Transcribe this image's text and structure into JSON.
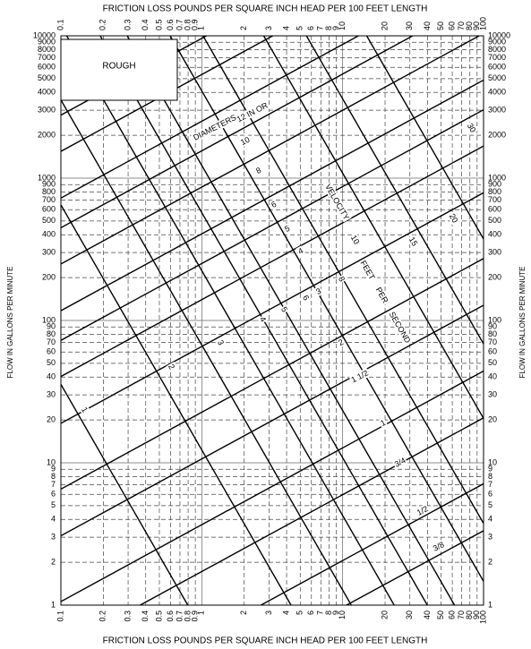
{
  "chart_data": {
    "type": "line",
    "title": "FRICTION LOSS POUNDS PER SQUARE INCH HEAD PER 100 FEET LENGTH",
    "xlabel": "FRICTION LOSS POUNDS PER SQUARE INCH HEAD PER 100 FEET LENGTH",
    "ylabel": "FLOW IN GALLONS PER MINUTE",
    "xscale": "log",
    "yscale": "log",
    "grid": true,
    "color": "#000000",
    "xlim": [
      0.1,
      100
    ],
    "ylim": [
      1,
      10000
    ],
    "xticks": [
      0.1,
      0.2,
      0.3,
      0.4,
      0.5,
      0.6,
      0.7,
      0.8,
      0.9,
      1,
      2,
      3,
      4,
      5,
      6,
      7,
      8,
      9,
      10,
      20,
      30,
      40,
      50,
      60,
      70,
      80,
      90,
      100
    ],
    "yticks": [
      1,
      2,
      3,
      4,
      5,
      6,
      7,
      8,
      9,
      10,
      20,
      30,
      40,
      50,
      60,
      70,
      80,
      90,
      100,
      200,
      300,
      400,
      500,
      600,
      700,
      800,
      900,
      1000,
      2000,
      3000,
      4000,
      5000,
      6000,
      7000,
      8000,
      9000,
      10000
    ],
    "box_label": "ROUGH",
    "annotations": [
      "DIAMETERS",
      "VELOCITY",
      "FEET",
      "PER",
      "SECOND"
    ],
    "series": [
      {
        "name": "3/8",
        "x": [
          10.66,
          100
        ],
        "values": [
          1,
          3.33
        ]
      },
      {
        "name": "1/2",
        "x": [
          2.63,
          100
        ],
        "values": [
          1,
          7.13
        ]
      },
      {
        "name": "3/4",
        "x": [
          0.365,
          100
        ],
        "values": [
          1,
          20.7
        ]
      },
      {
        "name": "1",
        "x": [
          0.1,
          100
        ],
        "values": [
          1.06,
          44.1
        ]
      },
      {
        "name": "1 1/2",
        "x": [
          0.1,
          100
        ],
        "values": [
          3.07,
          127.9
        ]
      },
      {
        "name": "2",
        "x": [
          0.1,
          100
        ],
        "values": [
          6.53,
          272.3
        ]
      },
      {
        "name": "3",
        "x": [
          0.1,
          100
        ],
        "values": [
          18.95,
          790
        ]
      },
      {
        "name": "4",
        "x": [
          0.1,
          100
        ],
        "values": [
          40.4,
          1682
        ]
      },
      {
        "name": "5",
        "x": [
          0.1,
          100
        ],
        "values": [
          72.5,
          3024
        ]
      },
      {
        "name": "6",
        "x": [
          0.1,
          100
        ],
        "values": [
          117.1,
          4882
        ]
      },
      {
        "name": "8",
        "x": [
          0.1,
          93.1
        ],
        "values": [
          249.5,
          10000
        ]
      },
      {
        "name": "10",
        "x": [
          0.1,
          31.4
        ],
        "values": [
          448,
          10000
        ]
      },
      {
        "name": "12 IN OR",
        "x": [
          0.1,
          12.95
        ],
        "values": [
          723.5,
          10000
        ]
      },
      {
        "x": [
          0.1,
          3.19
        ],
        "values": [
          1541,
          10000
        ]
      },
      {
        "x": [
          0.1,
          1.08
        ],
        "values": [
          2770,
          10000
        ]
      },
      {
        "name": "1",
        "x": [
          0.796,
          0.1
        ],
        "values": [
          1,
          35.6
        ]
      },
      {
        "name": "2",
        "x": [
          4.3,
          0.1
        ],
        "values": [
          1,
          649
        ]
      },
      {
        "name": "3",
        "x": [
          11.52,
          0.1
        ],
        "values": [
          1,
          3547
        ]
      },
      {
        "name": "4",
        "x": [
          23.2,
          0.11
        ],
        "values": [
          1,
          10000
        ]
      },
      {
        "name": "5",
        "x": [
          39.9,
          0.19
        ],
        "values": [
          1,
          10000
        ]
      },
      {
        "name": "6",
        "x": [
          62.2,
          0.296
        ],
        "values": [
          1,
          10000
        ]
      },
      {
        "name": "8",
        "x": [
          100,
          0.596
        ],
        "values": [
          1.47,
          10000
        ]
      },
      {
        "name": "10",
        "x": [
          100,
          1.02
        ],
        "values": [
          3.75,
          10000
        ]
      },
      {
        "name": "15",
        "x": [
          100,
          2.75
        ],
        "values": [
          20.5,
          10000
        ]
      },
      {
        "name": "20",
        "x": [
          100,
          5.53
        ],
        "values": [
          68.5,
          10000
        ]
      },
      {
        "name": "30",
        "x": [
          100,
          14.8
        ],
        "values": [
          374,
          10000
        ]
      }
    ]
  }
}
